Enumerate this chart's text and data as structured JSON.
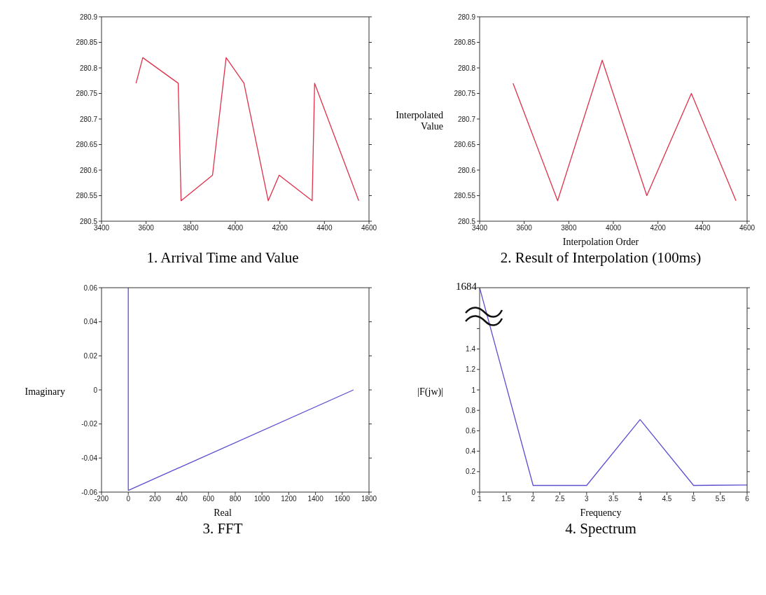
{
  "chart_data": [
    {
      "type": "line",
      "title": "1. Arrival Time and Value",
      "marker": "none",
      "series": [
        {
          "color": "#e0304a",
          "x": [
            3555,
            3585,
            3744,
            3757,
            3898,
            3959,
            4039,
            4148,
            4197,
            4345,
            4356,
            4554
          ],
          "values": [
            280.77,
            280.82,
            280.77,
            280.54,
            280.59,
            280.82,
            280.77,
            280.54,
            280.59,
            280.54,
            280.77,
            280.54
          ]
        }
      ],
      "xlim": [
        3400,
        4600
      ],
      "xticks": [
        3400,
        3600,
        3800,
        4000,
        4200,
        4400,
        4600
      ],
      "ylim": [
        280.5,
        280.9
      ],
      "yticks": [
        280.5,
        280.55,
        280.6,
        280.65,
        280.7,
        280.75,
        280.8,
        280.85,
        280.9
      ]
    },
    {
      "type": "line",
      "title": "2. Result of Interpolation (100ms)",
      "xlabel": "Interpolation Order",
      "ylabel": "Interpolated Value",
      "marker": "none",
      "series": [
        {
          "color": "#e0304a",
          "x": [
            3550,
            3750,
            3950,
            4150,
            4350,
            4550
          ],
          "values": [
            280.77,
            280.54,
            280.815,
            280.55,
            280.75,
            280.54
          ]
        }
      ],
      "xlim": [
        3400,
        4600
      ],
      "xticks": [
        3400,
        3600,
        3800,
        4000,
        4200,
        4400,
        4600
      ],
      "ylim": [
        280.5,
        280.9
      ],
      "yticks": [
        280.5,
        280.55,
        280.6,
        280.65,
        280.7,
        280.75,
        280.8,
        280.85,
        280.9
      ]
    },
    {
      "type": "line",
      "title": "3. FFT",
      "xlabel": "Real",
      "ylabel": "Imaginary",
      "marker": "none",
      "series": [
        {
          "color": "#5b4fd0",
          "x": [
            1684,
            0,
            0
          ],
          "values": [
            0,
            -0.059,
            0.06
          ]
        }
      ],
      "xlim": [
        -200,
        1800
      ],
      "xticks": [
        -200,
        0,
        200,
        400,
        600,
        800,
        1000,
        1200,
        1400,
        1600,
        1800
      ],
      "ylim": [
        -0.06,
        0.06
      ],
      "yticks": [
        -0.06,
        -0.04,
        -0.02,
        0,
        0.02,
        0.04,
        0.06
      ]
    },
    {
      "type": "line",
      "title": "4. Spectrum",
      "xlabel": "Frequency",
      "ylabel": "|F(jw)|",
      "marker": "none",
      "annotations": [
        "1684"
      ],
      "series": [
        {
          "color": "#5b4fd0",
          "x": [
            1,
            2,
            3,
            4,
            5,
            6
          ],
          "values": [
            2,
            0.065,
            0.065,
            0.71,
            0.065,
            0.07
          ]
        }
      ],
      "xlim": [
        1,
        6
      ],
      "xticks": [
        1,
        1.5,
        2,
        2.5,
        3,
        3.5,
        4,
        4.5,
        5,
        5.5,
        6
      ],
      "ylim": [
        0,
        2
      ],
      "yticks": [
        0,
        0.2,
        0.4,
        0.6,
        0.8,
        1,
        1.2,
        1.4,
        {
          "value": 1.6,
          "label": null
        },
        {
          "value": 1.8,
          "label": null
        },
        {
          "value": 2,
          "label": null
        }
      ]
    }
  ]
}
